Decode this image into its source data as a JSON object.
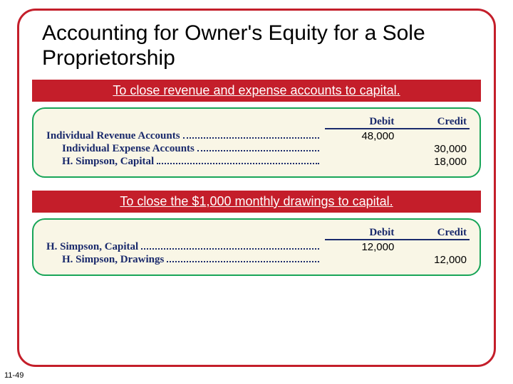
{
  "slide": {
    "title": "Accounting for Owner's Equity for a Sole Proprietorship",
    "pageNumber": "11-49",
    "borderColor": "#c41e2a",
    "journalBoxBorder": "#18a558",
    "journalBoxBg": "#f9f6e6",
    "accentColor": "#1a2a6c"
  },
  "banner1": {
    "text": "To close revenue and expense accounts to capital.",
    "bg": "#c41e2a",
    "textColor": "#ffffff"
  },
  "journal1": {
    "headers": {
      "debit": "Debit",
      "credit": "Credit"
    },
    "rows": [
      {
        "account": "Individual Revenue Accounts",
        "indent": false,
        "debit": "48,000",
        "credit": ""
      },
      {
        "account": "Individual Expense Accounts",
        "indent": true,
        "debit": "",
        "credit": "30,000"
      },
      {
        "account": "H. Simpson, Capital",
        "indent": true,
        "debit": "",
        "credit": "18,000"
      }
    ]
  },
  "banner2": {
    "text": "To close the $1,000 monthly drawings to capital.",
    "bg": "#c41e2a",
    "textColor": "#ffffff"
  },
  "journal2": {
    "headers": {
      "debit": "Debit",
      "credit": "Credit"
    },
    "rows": [
      {
        "account": "H. Simpson, Capital",
        "indent": false,
        "debit": "12,000",
        "credit": ""
      },
      {
        "account": "H. Simpson, Drawings",
        "indent": true,
        "debit": "",
        "credit": "12,000"
      }
    ]
  }
}
